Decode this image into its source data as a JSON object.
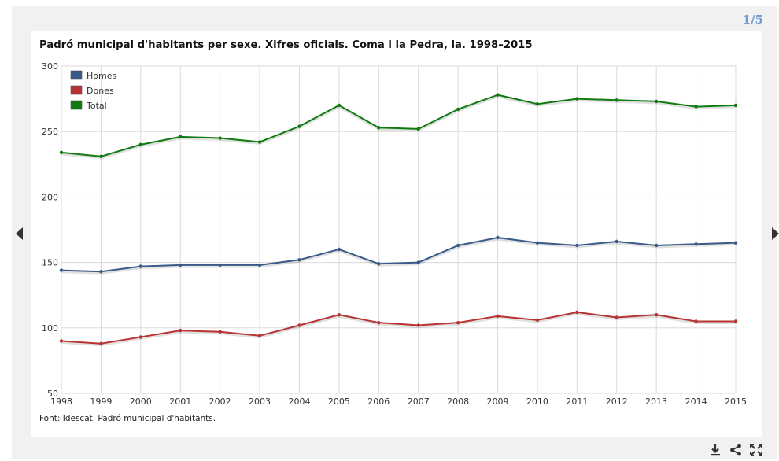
{
  "pager": {
    "label": "1/5"
  },
  "chart_data": {
    "type": "line",
    "title": "Padró municipal d'habitants per sexe. Xifres oficials. Coma i la Pedra, la. 1998–2015",
    "source": "Font: Idescat. Padró municipal d'habitants.",
    "x": [
      "1998",
      "1999",
      "2000",
      "2001",
      "2002",
      "2003",
      "2004",
      "2005",
      "2006",
      "2007",
      "2008",
      "2009",
      "2010",
      "2011",
      "2012",
      "2013",
      "2014",
      "2015"
    ],
    "ylim": [
      50,
      300
    ],
    "yticks": [
      "50",
      "100",
      "150",
      "200",
      "250",
      "300"
    ],
    "grid": true,
    "legend_position": "top-left",
    "series": [
      {
        "name": "Homes",
        "color": "#3a5a8a",
        "values": [
          144,
          143,
          147,
          148,
          148,
          148,
          152,
          160,
          149,
          150,
          163,
          169,
          165,
          163,
          166,
          163,
          164,
          165
        ]
      },
      {
        "name": "Dones",
        "color": "#b83232",
        "values": [
          90,
          88,
          93,
          98,
          97,
          94,
          102,
          110,
          104,
          102,
          104,
          109,
          106,
          112,
          108,
          110,
          105,
          105
        ]
      },
      {
        "name": "Total",
        "color": "#0f7a0f",
        "values": [
          234,
          231,
          240,
          246,
          245,
          242,
          254,
          270,
          253,
          252,
          267,
          278,
          271,
          275,
          274,
          273,
          269,
          270
        ]
      }
    ]
  },
  "toolbar": {
    "download_icon": "download-icon",
    "share_icon": "share-icon",
    "fullscreen_icon": "fullscreen-icon"
  }
}
